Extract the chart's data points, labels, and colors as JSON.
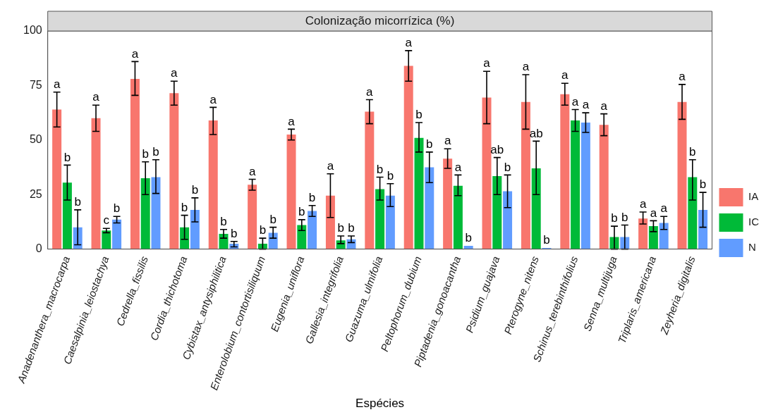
{
  "chart_data": {
    "type": "bar",
    "title": "Colonização micorrízica (%)",
    "xlabel": "Espécies",
    "categories": [
      "Anadenanthera_macrocarpa",
      "Caesalpinia_leiostachya",
      "Cedrella_fissilis",
      "Cordia_thichotoma",
      "Cybistax_antysiphilitica",
      "Enterolobium_contortisiliquum",
      "Eugenia_uniflora",
      "Gallesia_integrifolia",
      "Guazuma_ulmifolia",
      "Peltophorum_dubium",
      "Piptadenia_gonoacantha",
      "Psidium_guajava",
      "Pterogyne_nitens",
      "Schinus_terebinthifolius",
      "Senna_multijuga",
      "Triplaris_americana",
      "Zeyheria_digitalis"
    ],
    "series": [
      {
        "name": "IA",
        "color": "#f8766d",
        "values": [
          64,
          60,
          78,
          71.5,
          59,
          29.5,
          52.5,
          24.5,
          63,
          84,
          41.5,
          69.5,
          67.5,
          71,
          57,
          14,
          67.5
        ],
        "errors": [
          [
            56,
            72
          ],
          [
            54,
            66
          ],
          [
            70.5,
            86
          ],
          [
            66,
            77
          ],
          [
            52.5,
            65
          ],
          [
            27,
            32
          ],
          [
            50,
            55
          ],
          [
            14.5,
            34.5
          ],
          [
            57.5,
            68.5
          ],
          [
            77,
            91
          ],
          [
            37,
            46
          ],
          [
            57.5,
            81.5
          ],
          [
            55,
            80
          ],
          [
            66,
            76
          ],
          [
            52,
            62
          ],
          [
            11.5,
            17
          ],
          [
            59.5,
            75.5
          ]
        ],
        "value_labels": [
          "a",
          "a",
          "a",
          "a",
          "a",
          "a",
          "a",
          "a",
          "a",
          "a",
          "a",
          "a",
          "a",
          "a",
          "a",
          "a",
          "a"
        ]
      },
      {
        "name": "IC",
        "color": "#00ba38",
        "values": [
          30.5,
          8.5,
          32.5,
          10,
          7,
          2.5,
          11,
          4,
          27.5,
          51,
          29,
          33.5,
          37,
          59,
          5.5,
          10.5,
          33
        ],
        "errors": [
          [
            22.5,
            38.5
          ],
          [
            7.5,
            9.5
          ],
          [
            25,
            40
          ],
          [
            4.5,
            15.5
          ],
          [
            5,
            9
          ],
          [
            0,
            5
          ],
          [
            8.5,
            13.5
          ],
          [
            2.5,
            6
          ],
          [
            22.5,
            33
          ],
          [
            44.5,
            58
          ],
          [
            24.5,
            34
          ],
          [
            25,
            42
          ],
          [
            25,
            49.5
          ],
          [
            54,
            64
          ],
          [
            0,
            10.5
          ],
          [
            8,
            13
          ],
          [
            22.5,
            41
          ]
        ],
        "value_labels": [
          "b",
          "c",
          "b",
          "b",
          "b",
          "b",
          "b",
          "b",
          "b",
          "b",
          "a",
          "ab",
          "ab",
          "a",
          "b",
          "a",
          "b"
        ]
      },
      {
        "name": "N",
        "color": "#619cff",
        "values": [
          10,
          13.5,
          33,
          18,
          2.5,
          7.5,
          17.5,
          4.5,
          24.5,
          37.5,
          1.5,
          26.5,
          0.5,
          58,
          5.5,
          12,
          18
        ],
        "errors": [
          [
            2,
            18
          ],
          [
            12,
            15
          ],
          [
            25.5,
            41
          ],
          [
            12.5,
            23.5
          ],
          [
            1,
            3.5
          ],
          [
            5,
            10
          ],
          [
            15,
            20
          ],
          [
            3,
            6
          ],
          [
            19.5,
            30
          ],
          [
            30.5,
            44.5
          ],
          null,
          [
            19,
            34
          ],
          null,
          [
            53.5,
            62.5
          ],
          [
            0,
            11
          ],
          [
            9,
            15
          ],
          [
            10,
            26
          ]
        ],
        "value_labels": [
          "b",
          "b",
          "b",
          "b",
          "b",
          "b",
          "b",
          "b",
          "b",
          "b",
          "b",
          "b",
          "b",
          "a",
          "b",
          "a",
          "b"
        ]
      }
    ],
    "ylim": [
      0,
      100
    ],
    "yticks": [
      0,
      25,
      50,
      75,
      100
    ],
    "grid": false,
    "legend": "right"
  }
}
